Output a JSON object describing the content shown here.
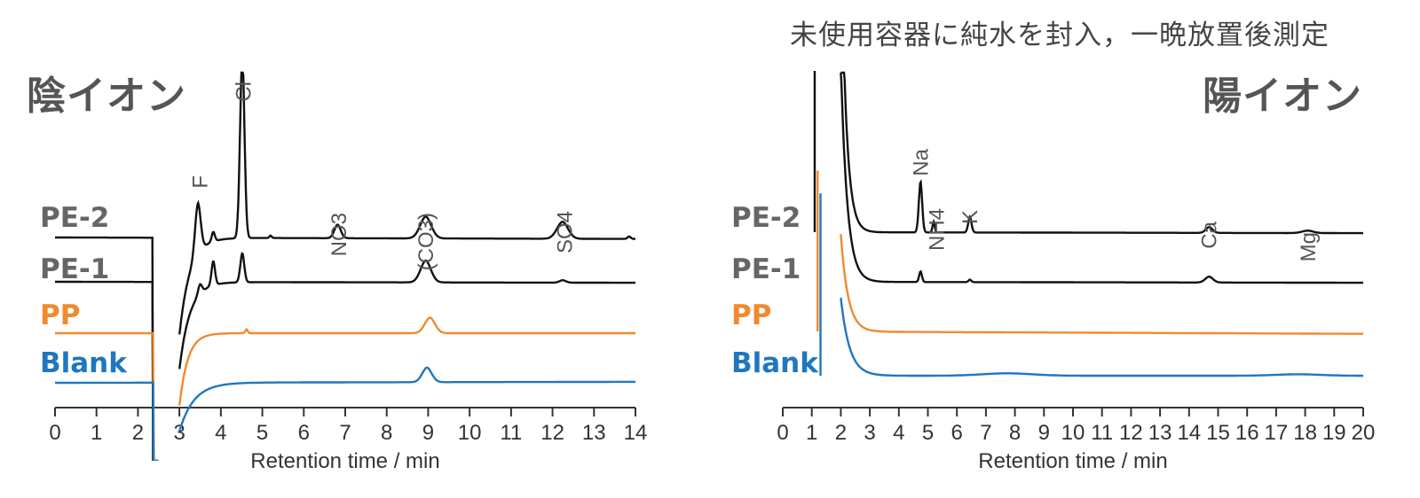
{
  "note": "未使用容器に純水を封入，一晩放置後測定",
  "colors": {
    "PE-2": "#111111",
    "PE-1": "#111111",
    "PP": "#f08a2e",
    "Blank": "#1f77c0",
    "label_gray": "#666666"
  },
  "chart_data": [
    {
      "type": "line",
      "title": "陰イオン",
      "xlabel": "Retention time / min",
      "xlim": [
        0,
        14
      ],
      "xticks": [
        0,
        1,
        2,
        3,
        4,
        5,
        6,
        7,
        8,
        9,
        10,
        11,
        12,
        13,
        14
      ],
      "series_labels": [
        "PE-2",
        "PE-1",
        "PP",
        "Blank"
      ],
      "series": [
        {
          "name": "PE-2",
          "color": "#111111",
          "baseline": 0.62,
          "drift": -0.03,
          "features": [
            {
              "t": "dip",
              "x": 2.42,
              "w": 0.02,
              "h": -9.0,
              "r": 0.06
            },
            {
              "t": "gap",
              "from": 2.5,
              "to": 3.0
            },
            {
              "t": "recover",
              "x": 3.0,
              "h": -2.0,
              "tau": 0.25
            },
            {
              "t": "peak",
              "x": 3.45,
              "h": 1.05,
              "s": 0.07
            },
            {
              "t": "peak",
              "x": 3.82,
              "h": 0.2,
              "s": 0.04
            },
            {
              "t": "peak",
              "x": 4.52,
              "h": 3.85,
              "s": 0.055
            },
            {
              "t": "peak",
              "x": 5.2,
              "h": 0.05,
              "s": 0.03
            },
            {
              "t": "peak",
              "x": 6.82,
              "h": 0.28,
              "s": 0.08
            },
            {
              "t": "peak",
              "x": 8.95,
              "h": 0.45,
              "s": 0.14
            },
            {
              "t": "peak",
              "x": 12.25,
              "h": 0.35,
              "s": 0.14
            },
            {
              "t": "peak",
              "x": 13.85,
              "h": 0.05,
              "s": 0.04
            }
          ]
        },
        {
          "name": "PE-1",
          "color": "#111111",
          "baseline": 0.0,
          "drift": -0.02,
          "features": [
            {
              "t": "dip",
              "x": 2.42,
              "w": 0.02,
              "h": -8.0,
              "r": 0.06
            },
            {
              "t": "gap",
              "from": 2.5,
              "to": 3.0
            },
            {
              "t": "recover",
              "x": 3.0,
              "h": -1.8,
              "tau": 0.25
            },
            {
              "t": "peak",
              "x": 3.5,
              "h": 0.2,
              "s": 0.05
            },
            {
              "t": "peak",
              "x": 3.82,
              "h": 0.5,
              "s": 0.045
            },
            {
              "t": "peak",
              "x": 4.52,
              "h": 0.6,
              "s": 0.05
            },
            {
              "t": "peak",
              "x": 8.95,
              "h": 0.45,
              "s": 0.13
            },
            {
              "t": "peak",
              "x": 12.25,
              "h": 0.05,
              "s": 0.08
            }
          ]
        },
        {
          "name": "PP",
          "color": "#f08a2e",
          "baseline": -0.62,
          "drift": 0.0,
          "features": [
            {
              "t": "dip",
              "x": 2.42,
              "w": 0.02,
              "h": -5.0,
              "r": 0.05
            },
            {
              "t": "gap",
              "from": 2.5,
              "to": 3.0
            },
            {
              "t": "recover",
              "x": 3.0,
              "h": -1.5,
              "tau": 0.2
            },
            {
              "t": "peak",
              "x": 4.62,
              "h": 0.08,
              "s": 0.03
            },
            {
              "t": "peak",
              "x": 9.05,
              "h": 0.32,
              "s": 0.13
            }
          ]
        },
        {
          "name": "Blank",
          "color": "#1f77c0",
          "baseline": -1.25,
          "drift": 0.02,
          "features": [
            {
              "t": "dip",
              "x": 2.42,
              "w": 0.02,
              "h": -3.4,
              "r": 0.05
            },
            {
              "t": "gap",
              "from": 2.5,
              "to": 3.0
            },
            {
              "t": "recover",
              "x": 3.0,
              "h": -1.0,
              "tau": 0.35
            },
            {
              "t": "peak",
              "x": 8.98,
              "h": 0.3,
              "s": 0.12
            }
          ]
        }
      ],
      "peak_labels": [
        {
          "text": "F",
          "x": 3.5
        },
        {
          "text": "Cl",
          "x": 4.55
        },
        {
          "text": "NO3",
          "x": 6.85
        },
        {
          "text": "(CO3)",
          "x": 8.95
        },
        {
          "text": "SO4",
          "x": 12.3
        }
      ]
    },
    {
      "type": "line",
      "title": "陽イオン",
      "xlabel": "Retention time / min",
      "xlim": [
        0,
        20
      ],
      "xticks": [
        0,
        1,
        2,
        3,
        4,
        5,
        6,
        7,
        8,
        9,
        10,
        11,
        12,
        13,
        14,
        15,
        16,
        17,
        18,
        19,
        20
      ],
      "series_labels": [
        "PE-2",
        "PE-1",
        "PP",
        "Blank"
      ],
      "series": [
        {
          "name": "PE-2",
          "color": "#111111",
          "baseline": 0.4,
          "drift": -0.02,
          "features": [
            {
              "t": "spike",
              "x": 1.1,
              "h": 2.0
            },
            {
              "t": "decay",
              "x": 2.0,
              "h": 6.5,
              "tau": 0.18
            },
            {
              "t": "peak",
              "x": 4.75,
              "h": 1.05,
              "s": 0.06
            },
            {
              "t": "peak",
              "x": 5.2,
              "h": 0.22,
              "s": 0.04
            },
            {
              "t": "peak",
              "x": 6.45,
              "h": 0.32,
              "s": 0.06
            },
            {
              "t": "peak",
              "x": 14.7,
              "h": 0.12,
              "s": 0.12
            },
            {
              "t": "peak",
              "x": 18.1,
              "h": 0.05,
              "s": 0.2
            }
          ]
        },
        {
          "name": "PE-1",
          "color": "#111111",
          "baseline": -0.25,
          "drift": -0.02,
          "features": [
            {
              "t": "decay",
              "x": 2.0,
              "h": 4.5,
              "tau": 0.22
            },
            {
              "t": "peak",
              "x": 4.75,
              "h": 0.22,
              "s": 0.05
            },
            {
              "t": "peak",
              "x": 6.45,
              "h": 0.05,
              "s": 0.05
            },
            {
              "t": "peak",
              "x": 14.7,
              "h": 0.12,
              "s": 0.14
            }
          ]
        },
        {
          "name": "PP",
          "color": "#f08a2e",
          "baseline": -0.7,
          "drift": -0.05,
          "features": [
            {
              "t": "spike",
              "x": 1.2,
              "h": 1.5
            },
            {
              "t": "decay",
              "x": 2.0,
              "h": 2.0,
              "tau": 0.25
            }
          ]
        },
        {
          "name": "Blank",
          "color": "#1f77c0",
          "baseline": -1.25,
          "drift": 0.0,
          "features": [
            {
              "t": "spike",
              "x": 1.3,
              "h": 1.7
            },
            {
              "t": "decay",
              "x": 2.0,
              "h": 1.6,
              "tau": 0.3
            },
            {
              "t": "peak",
              "x": 7.8,
              "h": 0.05,
              "s": 0.9
            },
            {
              "t": "peak",
              "x": 17.8,
              "h": 0.03,
              "s": 0.8
            }
          ]
        }
      ],
      "peak_labels": [
        {
          "text": "Na",
          "x": 4.75
        },
        {
          "text": "NH4",
          "x": 5.3
        },
        {
          "text": "K",
          "x": 6.45
        },
        {
          "text": "Ca",
          "x": 14.7
        },
        {
          "text": "Mg",
          "x": 18.1
        }
      ]
    }
  ]
}
